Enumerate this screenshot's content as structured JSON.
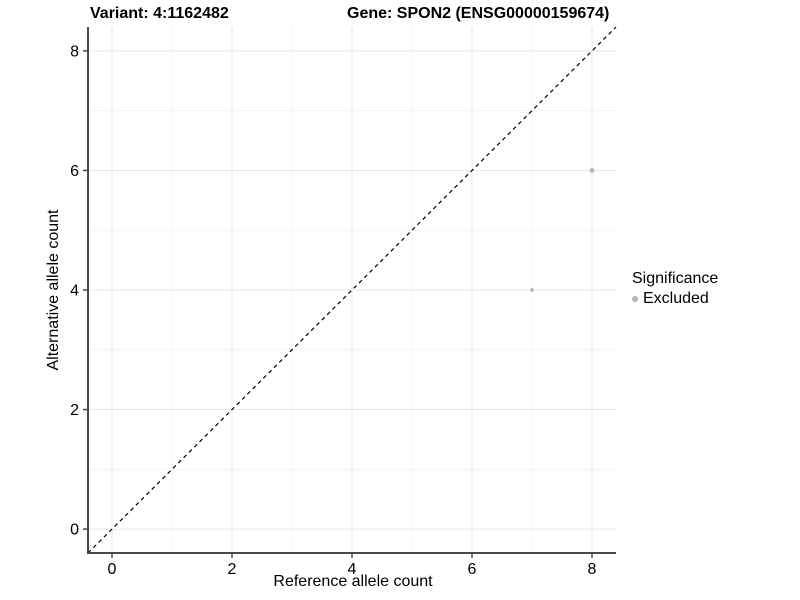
{
  "titles": {
    "variant": "Variant: 4:1162482",
    "gene": "Gene: SPON2 (ENSG00000159674)"
  },
  "chart_data": {
    "type": "scatter",
    "xlabel": "Reference allele count",
    "ylabel": "Alternative allele count",
    "xlim": [
      -0.4,
      8.4
    ],
    "ylim": [
      -0.4,
      8.4
    ],
    "x_ticks": [
      0,
      2,
      4,
      6,
      8
    ],
    "y_ticks": [
      0,
      2,
      4,
      6,
      8
    ],
    "x_minor_ticks": [
      1,
      3,
      5,
      7
    ],
    "y_minor_ticks": [
      1,
      3,
      5,
      7
    ],
    "grid": true,
    "reference_line": {
      "name": "identity-line",
      "style": "dashed",
      "from": [
        -0.4,
        -0.4
      ],
      "to": [
        8.4,
        8.4
      ],
      "color": "#000000"
    },
    "series": [
      {
        "name": "Excluded",
        "color": "#b4b4b4",
        "points": [
          {
            "x": 8,
            "y": 6,
            "r": 2.3
          },
          {
            "x": 7,
            "y": 4,
            "r": 1.9
          }
        ]
      }
    ],
    "legend": {
      "title": "Significance",
      "position": "right",
      "entries": [
        {
          "label": "Excluded",
          "color": "#b4b4b4"
        }
      ]
    }
  },
  "colors": {
    "background": "#ffffff",
    "axis_line": "#484848",
    "tick_label": "#000000",
    "grid_major": "#e6e6e6",
    "grid_minor": "#f1f1f1",
    "point": "#b4b4b4"
  }
}
